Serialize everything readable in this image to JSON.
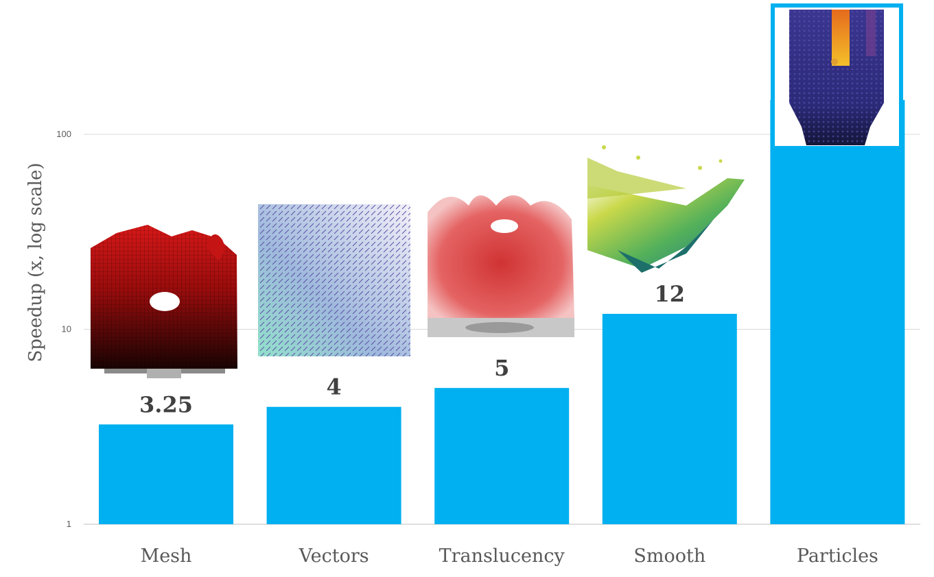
{
  "chart_data": {
    "type": "bar",
    "categories": [
      "Mesh",
      "Vectors",
      "Translucency",
      "Smooth",
      "Particles"
    ],
    "values": [
      3.25,
      4,
      5,
      12,
      150
    ],
    "data_labels": [
      "3.25",
      "4",
      "5",
      "12",
      ""
    ],
    "title": "",
    "xlabel": "",
    "ylabel": "Speedup (x, log scale)",
    "yscale": "log",
    "ylim": [
      1,
      200
    ],
    "yticks": [
      1,
      10,
      100
    ],
    "ytick_labels": [
      "1",
      "10",
      "100"
    ],
    "grid": true,
    "legend": "none",
    "bar_color": "#00b0f0",
    "insets": [
      {
        "category": "Mesh",
        "depicts": "red isosurface rendered as mesh"
      },
      {
        "category": "Vectors",
        "depicts": "vector field glyphs"
      },
      {
        "category": "Translucency",
        "depicts": "translucent red isosurface"
      },
      {
        "category": "Smooth",
        "depicts": "smooth shaded green-yellow surface"
      },
      {
        "category": "Particles",
        "depicts": "particle rendering in silo"
      }
    ]
  },
  "colors": {
    "bar": "#00b0f0",
    "grid": "#d9d9d9",
    "text": "#595959",
    "label": "#404040"
  }
}
